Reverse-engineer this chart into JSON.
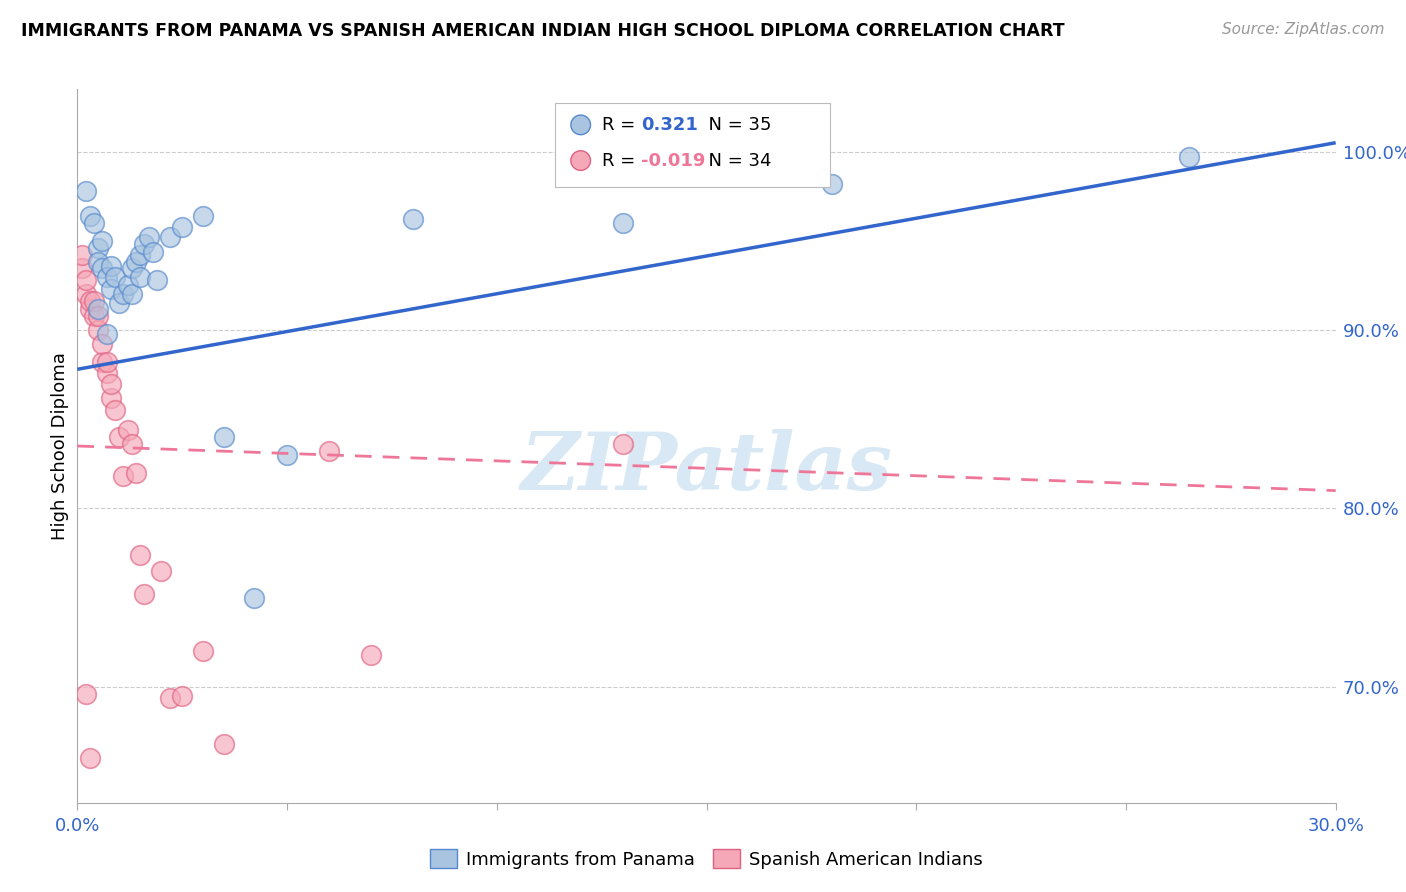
{
  "title": "IMMIGRANTS FROM PANAMA VS SPANISH AMERICAN INDIAN HIGH SCHOOL DIPLOMA CORRELATION CHART",
  "source": "Source: ZipAtlas.com",
  "ylabel": "High School Diploma",
  "xlim": [
    0.0,
    0.3
  ],
  "ylim": [
    0.635,
    1.035
  ],
  "xticks": [
    0.0,
    0.05,
    0.1,
    0.15,
    0.2,
    0.25,
    0.3
  ],
  "xticklabels": [
    "0.0%",
    "",
    "",
    "",
    "",
    "",
    "30.0%"
  ],
  "ytick_positions": [
    0.7,
    0.8,
    0.9,
    1.0
  ],
  "ytick_labels": [
    "70.0%",
    "80.0%",
    "90.0%",
    "100.0%"
  ],
  "legend_r1": "R = ",
  "legend_r1_val": "0.321",
  "legend_n1": "N = 35",
  "legend_r2": "R = ",
  "legend_r2_val": "-0.019",
  "legend_n2": "N = 34",
  "legend_label1": "Immigrants from Panama",
  "legend_label2": "Spanish American Indians",
  "blue_color": "#A8C4E0",
  "pink_color": "#F4A8B8",
  "blue_edge_color": "#5588CC",
  "pink_edge_color": "#E06080",
  "blue_line_color": "#3366CC",
  "pink_line_color": "#EE7799",
  "blue_r_color": "#3366CC",
  "pink_r_color": "#EE7799",
  "watermark_color": "#D8E8F5",
  "blue_scatter_x": [
    0.002,
    0.003,
    0.004,
    0.005,
    0.005,
    0.006,
    0.006,
    0.007,
    0.008,
    0.008,
    0.009,
    0.01,
    0.011,
    0.012,
    0.013,
    0.013,
    0.014,
    0.015,
    0.015,
    0.016,
    0.017,
    0.018,
    0.019,
    0.022,
    0.025,
    0.03,
    0.035,
    0.042,
    0.05,
    0.08,
    0.13,
    0.18,
    0.265,
    0.005,
    0.007
  ],
  "blue_scatter_y": [
    0.978,
    0.964,
    0.96,
    0.946,
    0.938,
    0.935,
    0.95,
    0.93,
    0.923,
    0.936,
    0.93,
    0.915,
    0.92,
    0.925,
    0.92,
    0.935,
    0.938,
    0.93,
    0.942,
    0.948,
    0.952,
    0.944,
    0.928,
    0.952,
    0.958,
    0.964,
    0.84,
    0.75,
    0.83,
    0.962,
    0.96,
    0.982,
    0.997,
    0.912,
    0.898
  ],
  "pink_scatter_x": [
    0.001,
    0.001,
    0.002,
    0.002,
    0.003,
    0.003,
    0.004,
    0.004,
    0.005,
    0.005,
    0.006,
    0.006,
    0.007,
    0.007,
    0.008,
    0.008,
    0.009,
    0.01,
    0.011,
    0.012,
    0.013,
    0.014,
    0.015,
    0.016,
    0.02,
    0.022,
    0.025,
    0.03,
    0.035,
    0.06,
    0.07,
    0.13,
    0.002,
    0.003
  ],
  "pink_scatter_y": [
    0.935,
    0.942,
    0.92,
    0.928,
    0.912,
    0.916,
    0.908,
    0.916,
    0.9,
    0.908,
    0.882,
    0.892,
    0.876,
    0.882,
    0.862,
    0.87,
    0.855,
    0.84,
    0.818,
    0.844,
    0.836,
    0.82,
    0.774,
    0.752,
    0.765,
    0.694,
    0.695,
    0.72,
    0.668,
    0.832,
    0.718,
    0.836,
    0.696,
    0.66
  ],
  "blue_trendline_x": [
    0.0,
    0.3
  ],
  "blue_trendline_y": [
    0.878,
    1.005
  ],
  "pink_trendline_x": [
    0.0,
    0.3
  ],
  "pink_trendline_y": [
    0.835,
    0.81
  ]
}
